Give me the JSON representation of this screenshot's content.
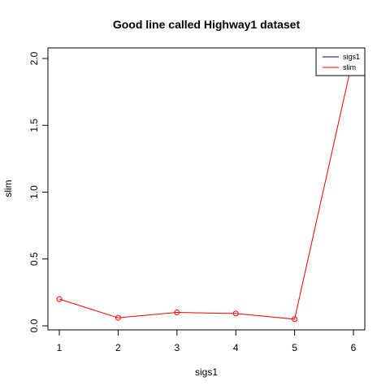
{
  "chart_data": {
    "type": "line",
    "title": "Good line called Highway1 dataset",
    "xlabel": "sigs1",
    "ylabel": "slim",
    "xlim": [
      1,
      6
    ],
    "ylim": [
      0,
      2.0
    ],
    "x_ticks": [
      1,
      2,
      3,
      4,
      5,
      6
    ],
    "y_ticks": [
      0.0,
      0.5,
      1.0,
      1.5,
      2.0
    ],
    "x_tick_labels": [
      "1",
      "2",
      "3",
      "4",
      "5",
      "6"
    ],
    "y_tick_labels": [
      "0.0",
      "0.5",
      "1.0",
      "1.5",
      "2.0"
    ],
    "grid": false,
    "legend_position": "top-right",
    "legend": [
      {
        "label": "sigs1",
        "color": "#000080"
      },
      {
        "label": "slim",
        "color": "#ff0000"
      }
    ],
    "series": [
      {
        "name": "slim",
        "color": "#ff0000",
        "marker": "open-circle",
        "x": [
          1,
          2,
          3,
          4,
          5,
          6
        ],
        "values": [
          0.2,
          0.06,
          0.1,
          0.092,
          0.05,
          2.02
        ]
      }
    ]
  }
}
